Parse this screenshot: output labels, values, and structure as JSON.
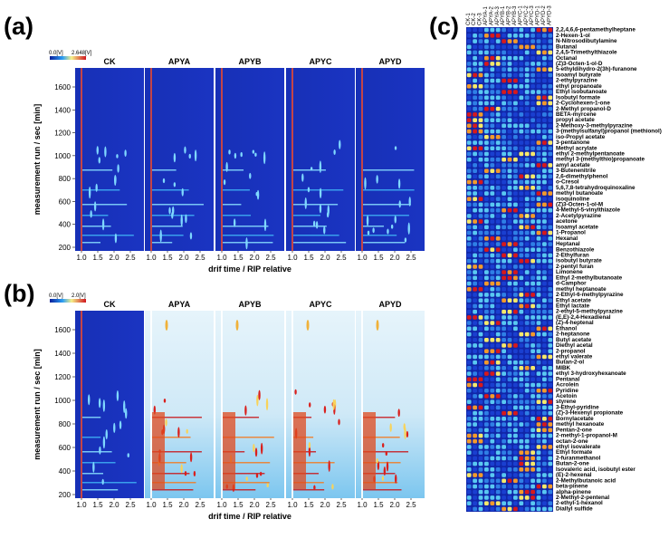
{
  "panel_a": {
    "label": "(a)",
    "colorbar": {
      "min": "0.0[V]",
      "max": "2.648[V]"
    },
    "samples": [
      "CK",
      "APYA",
      "APYB",
      "APYC",
      "APYD"
    ],
    "y_axis_label": "measurement run / sec [min]",
    "yticks": [
      "200",
      "400",
      "600",
      "800",
      "1000",
      "1200",
      "1400",
      "1600"
    ],
    "x_axis_label": "drif time / RIP relative",
    "xticks": [
      "1.0",
      "1.5",
      "2.0",
      "2.5"
    ]
  },
  "panel_b": {
    "label": "(b)",
    "colorbar": {
      "min": "0.0[V]",
      "max": "2.0[V]"
    },
    "samples": [
      "CK",
      "APYA",
      "APYB",
      "APYC",
      "APYD"
    ],
    "y_axis_label": "measurement run / sec [min]",
    "yticks": [
      "200",
      "400",
      "600",
      "800",
      "1000",
      "1200",
      "1400",
      "1600"
    ],
    "x_axis_label": "drif time / RIP relative",
    "xticks": [
      "1.0",
      "1.5",
      "2.0",
      "2.5"
    ]
  },
  "panel_c": {
    "label": "(c)",
    "samples": [
      "CK-1",
      "CK-2",
      "CK-3",
      "APYA-1",
      "APYA-2",
      "APYA-3",
      "APYB-1",
      "APYB-2",
      "APYB-3",
      "APYC-1",
      "APYC-2",
      "APYC-3",
      "APYD-1",
      "APYD-2",
      "APYD-3"
    ],
    "compounds": [
      "2,2,4,6,6-pentamethylheptane",
      "2-Hexen-1-ol",
      "N-Nitrosodibutylamine",
      "Butanal",
      "2,4,5-Trimethylthiazole",
      "Octanal",
      "(Z)3-Octen-1-ol-D",
      "5-ethyldihydro-2(3h)-furanone",
      "isoamyl butyrate",
      "2-ethylpyrazine",
      "ethyl propanoate",
      "Ethyl isobutanoate",
      "Isobutyl formate",
      "2-Cyclohexen-1-one",
      "2-Methyl propanol-D",
      "BETA-myrcene",
      "propyl acetate",
      "2-Methoxy-3-methylpyrazine",
      "3-(methylsulfanyl)propanol (methionol)",
      "iso-Propyl acetate",
      "3-pentanone",
      "Methyl acrylate",
      "ethyl 2-methylpentanoate",
      "methyl 3-(methylthio)propanoate",
      "amyl acetate",
      "3-Butenenitrile",
      "2,6-dimethylphenol",
      "o-Cresol",
      "5,6,7,8-tetrahydroquinoxaline",
      "methyl butanoate",
      "isoquinoline",
      "(Z)3-Octen-1-ol-M",
      "4-Methyl-5-vinylthiazole",
      "2-Acetylpyrazine",
      "acetone",
      "Isoamyl acetate",
      "1-Propanol",
      "Hexanal",
      "Heptanal",
      "Benzothiazole",
      "2-Ethylfuran",
      "isobutyl butyrate",
      "2-pentyl furan",
      "Limonene",
      "Ethyl 2-methylbutanoate",
      "d-Camphor",
      "methyl heptanoate",
      "2-Ethyl-6-methylpyrazine",
      "Ethyl acetate",
      "Ethyl lactate",
      "2-ethyl-5-methylpyrazine",
      "(E,E)-2,4-Hexadienal",
      "(Z)-4-heptenal",
      "Ethanol",
      "2-heptanone",
      "Butyl acetate",
      "Diethyl acetal",
      "2-propanol",
      "ethyl valerate",
      "Butan-2-ol",
      "MIBK",
      "ethyl 3-hydroxyhexanoate",
      "Pentanal",
      "Acrolein",
      "Pyridine",
      "Acetoin",
      "styrene",
      "3-Ethyl-pyridine",
      "(Z)-3-Hexenyl propionate",
      "Bornylacetate",
      "methyl hexanoate",
      "Pentan-2-one",
      "2-methyl-1-propanol-M",
      "octan-2-one",
      "ethyl isovalerate",
      "Ethyl formate",
      "2-furanmethanol",
      "Butan-2-one",
      "Isovaleric acid, isobutyl ester",
      "(E)-2-hexenal",
      "2-Methylbutanoic acid",
      "beta-pinene",
      "alpha-pinene",
      "2-Methyl-2-pentenal",
      "2-ethyl-1-hexanol",
      "Diallyl sulfide"
    ]
  }
}
